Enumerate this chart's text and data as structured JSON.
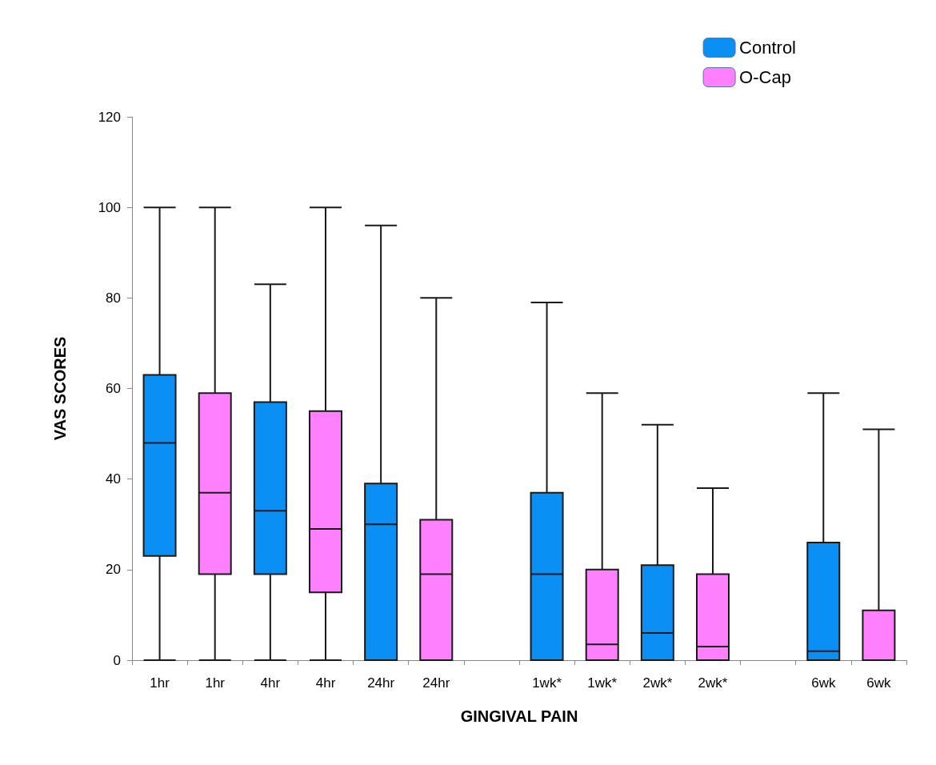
{
  "chart_data": {
    "type": "box",
    "xlabel": "GINGIVAL PAIN",
    "ylabel": "VAS SCORES",
    "categories": [
      "1hr",
      "1hr",
      "4hr",
      "4hr",
      "24hr",
      "24hr",
      null,
      "1wk*",
      "1wk*",
      "2wk*",
      "2wk*",
      null,
      "6wk",
      "6wk"
    ],
    "ylim": [
      0,
      120
    ],
    "yticks": [
      0,
      20,
      40,
      60,
      80,
      100,
      120
    ],
    "grid": false,
    "legend": "top right",
    "series": [
      {
        "name": "Control",
        "color": "#0a8ff5",
        "boxes": [
          {
            "low": 0,
            "q1": 23,
            "median": 48,
            "q3": 63,
            "high": 100
          },
          null,
          {
            "low": 0,
            "q1": 19,
            "median": 33,
            "q3": 57,
            "high": 83
          },
          null,
          {
            "low": 0,
            "q1": 0,
            "median": 30,
            "q3": 39,
            "high": 96
          },
          null,
          null,
          {
            "low": 0,
            "q1": 0,
            "median": 19,
            "q3": 37,
            "high": 79
          },
          null,
          {
            "low": 0,
            "q1": 0,
            "median": 6,
            "q3": 21,
            "high": 52
          },
          null,
          null,
          {
            "low": 0,
            "q1": 0,
            "median": 2,
            "q3": 26,
            "high": 59
          },
          null
        ]
      },
      {
        "name": "O-Cap",
        "color": "#ff80ff",
        "boxes": [
          null,
          {
            "low": 0,
            "q1": 19,
            "median": 37,
            "q3": 59,
            "high": 100
          },
          null,
          {
            "low": 0,
            "q1": 15,
            "median": 29,
            "q3": 55,
            "high": 100
          },
          null,
          {
            "low": 0,
            "q1": 0,
            "median": 19,
            "q3": 31,
            "high": 80
          },
          null,
          null,
          {
            "low": 0,
            "q1": 0,
            "median": 3.5,
            "q3": 20,
            "high": 59
          },
          null,
          {
            "low": 0,
            "q1": 0,
            "median": 3,
            "q3": 19,
            "high": 38
          },
          null,
          null,
          {
            "low": 0,
            "q1": 0,
            "median": 0,
            "q3": 11,
            "high": 51
          }
        ]
      }
    ]
  }
}
